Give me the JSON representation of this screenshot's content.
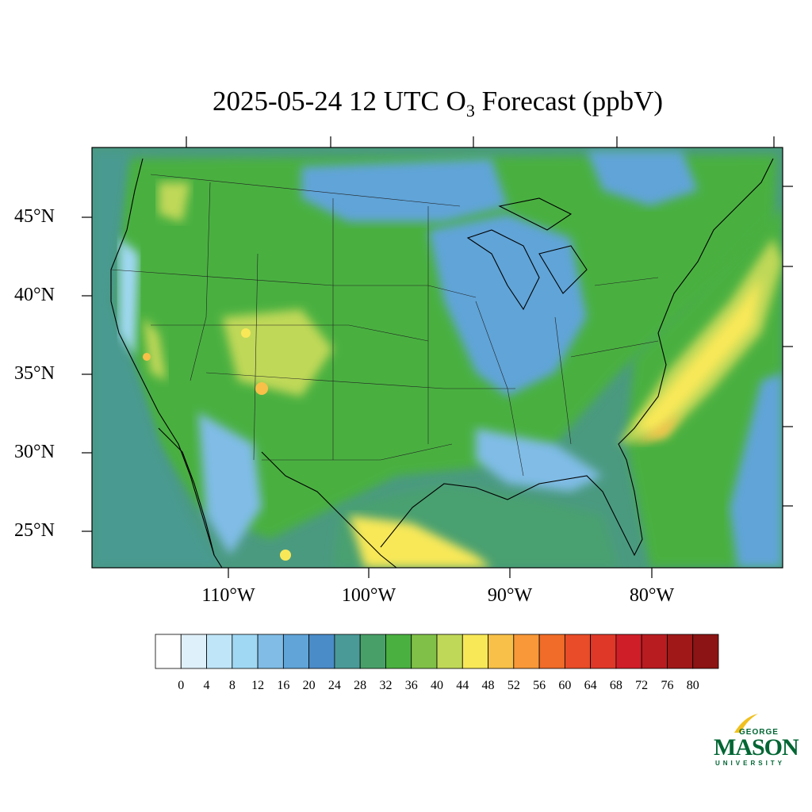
{
  "title": {
    "main": "2025-05-24 12 UTC O",
    "subscript": "3",
    "suffix": " Forecast (ppbV)"
  },
  "map": {
    "lat_labels": [
      "45°N",
      "40°N",
      "35°N",
      "30°N",
      "25°N"
    ],
    "lon_labels": [
      "110°W",
      "100°W",
      "90°W",
      "80°W"
    ],
    "extent": {
      "lon_min": -119,
      "lon_max": -70,
      "lat_min": 22.5,
      "lat_max": 49
    }
  },
  "colorbar": {
    "levels": [
      "0",
      "4",
      "8",
      "12",
      "16",
      "20",
      "24",
      "28",
      "32",
      "36",
      "40",
      "44",
      "48",
      "52",
      "56",
      "60",
      "64",
      "68",
      "72",
      "76",
      "80"
    ],
    "colors": [
      "#ffffff",
      "#def0fa",
      "#bfe6f8",
      "#a0d8f4",
      "#80bce6",
      "#60a4d8",
      "#4a8cc8",
      "#4a9a98",
      "#48a068",
      "#4ab040",
      "#80c048",
      "#c0d858",
      "#f8e858",
      "#f8c048",
      "#f89838",
      "#f06c28",
      "#e84c28",
      "#e03828",
      "#d01e28",
      "#b81c20",
      "#a01818",
      "#8c1414"
    ]
  },
  "logo": {
    "line1": "GEORGE",
    "line2": "MASON",
    "line3": "UNIVERSITY",
    "color": "#006633",
    "accent": "#f0c020"
  }
}
